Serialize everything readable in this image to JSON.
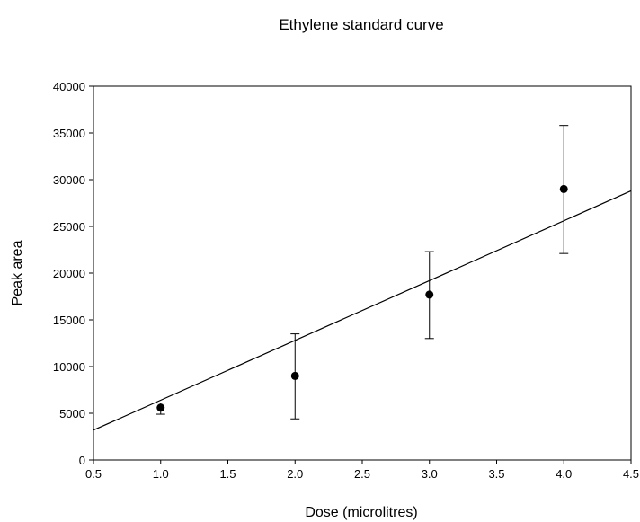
{
  "chart_data": {
    "type": "scatter",
    "title": "Ethylene standard curve",
    "xlabel": "Dose (microlitres)",
    "ylabel": "Peak area",
    "xlim": [
      0.5,
      4.5
    ],
    "ylim": [
      0,
      40000
    ],
    "x_ticks": [
      "0.5",
      "1.0",
      "1.5",
      "2.0",
      "2.5",
      "3.0",
      "3.5",
      "4.0",
      "4.5"
    ],
    "y_ticks": [
      "0",
      "5000",
      "10000",
      "15000",
      "20000",
      "25000",
      "30000",
      "35000",
      "40000"
    ],
    "grid": false,
    "legend": "none",
    "series": [
      {
        "x": [
          1.0,
          2.0,
          3.0,
          4.0
        ],
        "y": [
          5600,
          9000,
          17700,
          29000
        ],
        "err_low": [
          4900,
          4400,
          13000,
          22100
        ],
        "err_high": [
          6100,
          13500,
          22300,
          35800
        ]
      }
    ],
    "fit_line": {
      "x": [
        0.5,
        4.5
      ],
      "y": [
        3200,
        28800
      ]
    },
    "colors": {
      "marker": "#000000",
      "line": "#000000"
    }
  }
}
